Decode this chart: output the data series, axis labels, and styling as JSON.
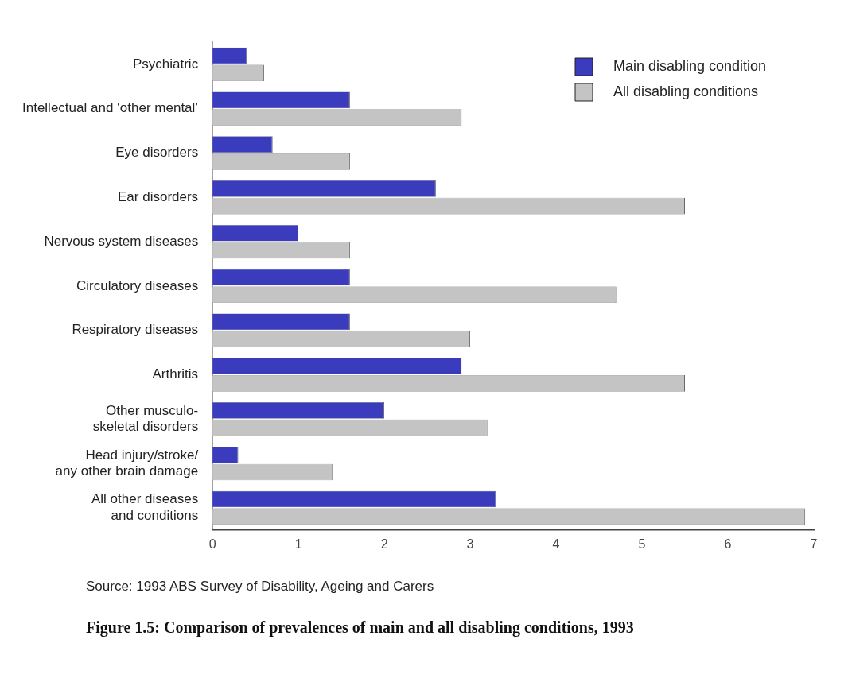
{
  "chart_data": {
    "type": "bar",
    "orientation": "horizontal",
    "title": "Figure 1.5: Comparison of prevalences of main and all disabling conditions, 1993",
    "annotations": [
      "Source: 1993 ABS Survey of Disability, Ageing and Carers"
    ],
    "categories": [
      "Psychiatric",
      "Intellectual and ‘other mental’",
      "Eye disorders",
      "Ear disorders",
      "Nervous system diseases",
      "Circulatory diseases",
      "Respiratory diseases",
      "Arthritis",
      "Other musculo-\nskeletal disorders",
      "Head injury/stroke/\nany other brain damage",
      "All other diseases\nand conditions"
    ],
    "series": [
      {
        "name": "Main disabling condition",
        "color": "#3b3bbd",
        "values": [
          0.4,
          1.6,
          0.7,
          2.6,
          1.0,
          1.6,
          1.6,
          2.9,
          2.0,
          0.3,
          3.3
        ]
      },
      {
        "name": "All disabling conditions",
        "color": "#c4c4c4",
        "values": [
          0.6,
          2.9,
          1.6,
          5.5,
          1.6,
          4.7,
          3.0,
          5.5,
          3.2,
          1.4,
          6.9
        ]
      }
    ],
    "xlim": [
      0,
      7
    ],
    "xticks": [
      0,
      1,
      2,
      3,
      4,
      5,
      6,
      7
    ],
    "grid": false,
    "legend": "top right"
  }
}
